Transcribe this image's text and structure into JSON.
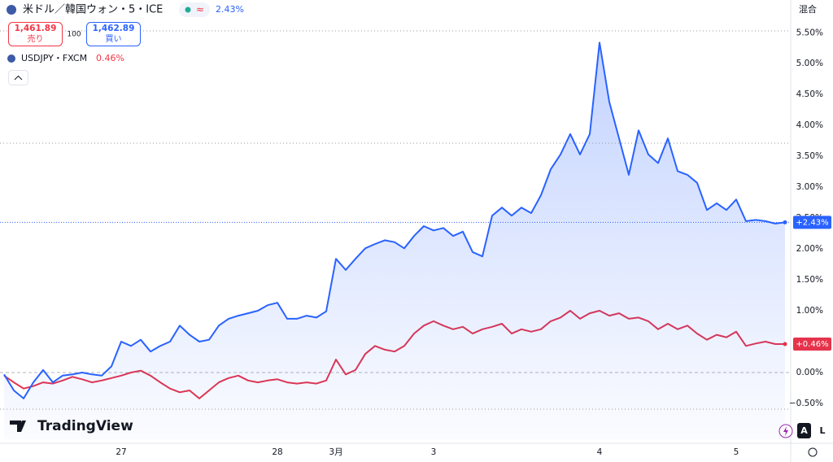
{
  "header": {
    "title": "米ドル／韓国ウォン・5・ICE",
    "change": "2.43%",
    "sell_price": "1,461.89",
    "sell_label": "売り",
    "spread": "100",
    "buy_price": "1,462.89",
    "buy_label": "買い",
    "compare_symbol": "USDJPY・FXCM",
    "compare_change": "0.46%",
    "scale_mode": "混合",
    "brand": "TradingView",
    "auto_button": "A",
    "log_button": "L"
  },
  "chart_data": {
    "type": "line",
    "categories": [
      null,
      null,
      null,
      null,
      null,
      null,
      null,
      null,
      null,
      null,
      null,
      null,
      "27",
      null,
      null,
      null,
      null,
      null,
      null,
      null,
      null,
      null,
      null,
      null,
      null,
      null,
      null,
      null,
      "28",
      null,
      null,
      null,
      null,
      null,
      "3月",
      null,
      null,
      null,
      null,
      null,
      null,
      null,
      null,
      null,
      "3",
      null,
      null,
      null,
      null,
      null,
      null,
      null,
      null,
      null,
      null,
      null,
      null,
      null,
      null,
      null,
      null,
      "4",
      null,
      null,
      null,
      null,
      null,
      null,
      null,
      null,
      null,
      null,
      null,
      null,
      null,
      "5",
      null,
      null,
      null,
      null,
      null
    ],
    "series": [
      {
        "name": "USDKRW",
        "color": "#2962ff",
        "area": true,
        "values": [
          -0.03,
          -0.29,
          -0.42,
          -0.16,
          0.04,
          -0.16,
          -0.05,
          -0.03,
          0,
          -0.03,
          -0.05,
          0.1,
          0.5,
          0.43,
          0.53,
          0.34,
          0.43,
          0.5,
          0.76,
          0.61,
          0.5,
          0.53,
          0.76,
          0.87,
          0.92,
          0.96,
          1.0,
          1.09,
          1.13,
          0.87,
          0.87,
          0.92,
          0.89,
          0.99,
          1.84,
          1.66,
          1.84,
          2.01,
          2.08,
          2.14,
          2.11,
          2.01,
          2.21,
          2.37,
          2.3,
          2.34,
          2.21,
          2.28,
          1.95,
          1.88,
          2.54,
          2.67,
          2.54,
          2.67,
          2.58,
          2.87,
          3.29,
          3.53,
          3.86,
          3.53,
          3.86,
          5.34,
          4.38,
          3.79,
          3.2,
          3.92,
          3.53,
          3.39,
          3.79,
          3.26,
          3.2,
          3.07,
          2.63,
          2.74,
          2.63,
          2.8,
          2.45,
          2.47,
          2.45,
          2.41,
          2.43
        ],
        "value_labels": [
          null,
          null,
          null,
          null,
          null,
          null,
          null,
          null,
          null,
          null,
          null,
          null,
          null,
          null,
          null,
          null,
          null,
          null,
          null,
          null,
          null,
          null,
          null,
          null,
          null,
          null,
          null,
          null,
          null,
          null,
          null,
          null,
          null,
          null,
          null,
          null,
          null,
          null,
          null,
          null,
          null,
          null,
          null,
          null,
          null,
          null,
          null,
          null,
          null,
          null,
          null,
          null,
          null,
          null,
          null,
          null,
          null,
          null,
          null,
          null,
          null,
          null,
          null,
          null,
          null,
          null,
          null,
          null,
          null,
          null,
          null,
          null,
          null,
          null,
          null,
          null,
          null,
          null,
          null,
          null,
          "+2.43%"
        ]
      },
      {
        "name": "USDJPY",
        "color": "#e5334b",
        "area": false,
        "values": [
          -0.05,
          -0.16,
          -0.26,
          -0.22,
          -0.16,
          -0.18,
          -0.13,
          -0.07,
          -0.11,
          -0.16,
          -0.13,
          -0.09,
          -0.05,
          0,
          0.03,
          -0.05,
          -0.16,
          -0.26,
          -0.32,
          -0.29,
          -0.42,
          -0.29,
          -0.16,
          -0.09,
          -0.05,
          -0.13,
          -0.16,
          -0.13,
          -0.11,
          -0.16,
          -0.18,
          -0.16,
          -0.18,
          -0.13,
          0.21,
          -0.03,
          0.04,
          0.3,
          0.43,
          0.37,
          0.34,
          0.43,
          0.63,
          0.76,
          0.83,
          0.76,
          0.7,
          0.74,
          0.63,
          0.7,
          0.74,
          0.79,
          0.63,
          0.7,
          0.66,
          0.7,
          0.83,
          0.89,
          1.0,
          0.87,
          0.96,
          1.0,
          0.92,
          0.96,
          0.87,
          0.89,
          0.83,
          0.7,
          0.79,
          0.7,
          0.76,
          0.63,
          0.53,
          0.61,
          0.57,
          0.66,
          0.43,
          0.47,
          0.5,
          0.46,
          0.46
        ],
        "value_labels": [
          null,
          null,
          null,
          null,
          null,
          null,
          null,
          null,
          null,
          null,
          null,
          null,
          null,
          null,
          null,
          null,
          null,
          null,
          null,
          null,
          null,
          null,
          null,
          null,
          null,
          null,
          null,
          null,
          null,
          null,
          null,
          null,
          null,
          null,
          null,
          null,
          null,
          null,
          null,
          null,
          null,
          null,
          null,
          null,
          null,
          null,
          null,
          null,
          null,
          null,
          null,
          null,
          null,
          null,
          null,
          null,
          null,
          null,
          null,
          null,
          null,
          null,
          null,
          null,
          null,
          null,
          null,
          null,
          null,
          null,
          null,
          null,
          null,
          null,
          null,
          null,
          null,
          null,
          null,
          null,
          "+0.46%"
        ]
      }
    ],
    "ylim": [
      -1.08,
      6.03
    ],
    "yticks": [
      {
        "value": -0.5,
        "label": "−0.50%"
      },
      {
        "value": 0,
        "label": "0.00%"
      },
      {
        "value": 0.5,
        "label": "0.50%"
      },
      {
        "value": 1,
        "label": "1.00%"
      },
      {
        "value": 1.5,
        "label": "1.50%"
      },
      {
        "value": 2,
        "label": "2.00%"
      },
      {
        "value": 2.5,
        "label": "2.50%"
      },
      {
        "value": 3,
        "label": "3.00%"
      },
      {
        "value": 3.5,
        "label": "3.50%"
      },
      {
        "value": 4,
        "label": "4.00%"
      },
      {
        "value": 4.5,
        "label": "4.50%"
      },
      {
        "value": 5,
        "label": "5.00%"
      },
      {
        "value": 5.5,
        "label": "5.50%"
      }
    ],
    "zero_line": true
  }
}
